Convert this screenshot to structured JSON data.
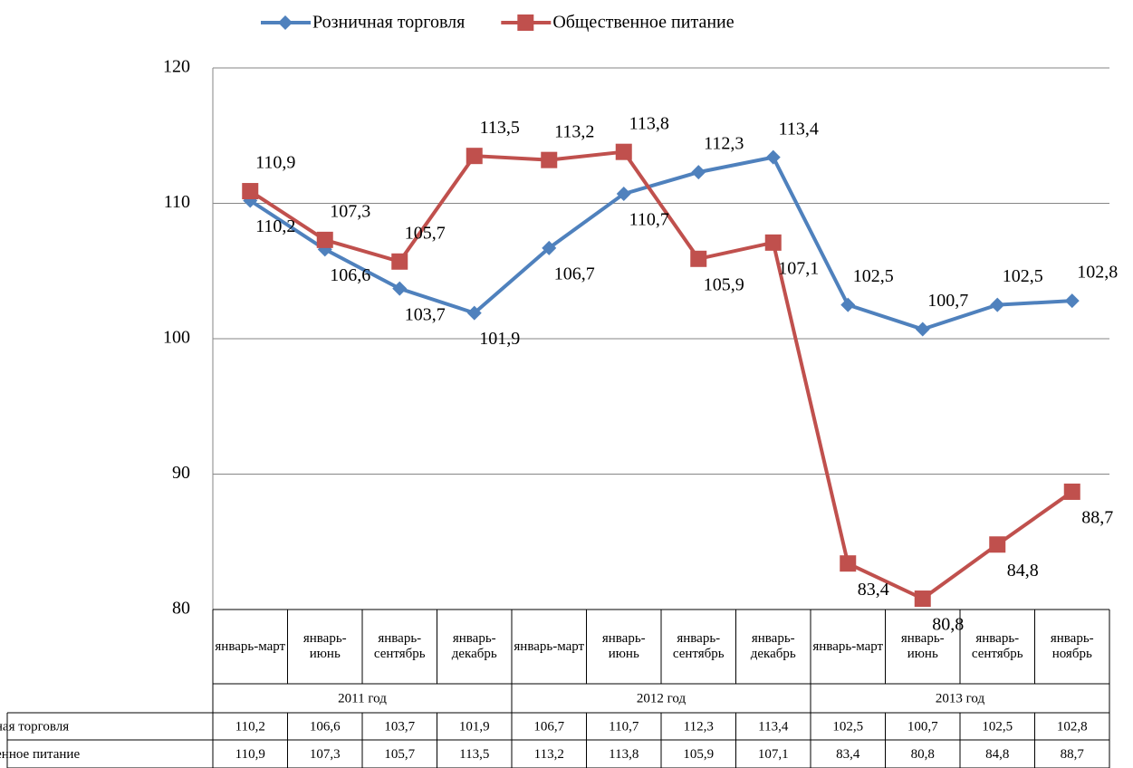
{
  "chart_data": {
    "type": "line",
    "categories": [
      "январь-март",
      "январь-июнь",
      "январь-сентябрь",
      "январь-декабрь",
      "январь-март",
      "январь-июнь",
      "январь-сентябрь",
      "январь-декабрь",
      "январь-март",
      "январь-июнь",
      "январь-сентябрь",
      "январь-ноябрь"
    ],
    "groups": [
      "2011 год",
      "2012 год",
      "2013 год"
    ],
    "series": [
      {
        "name": "Розничная торговля",
        "color": "#4f81bd",
        "marker": "diamond",
        "values": [
          110.2,
          106.6,
          103.7,
          101.9,
          106.7,
          110.7,
          112.3,
          113.4,
          102.5,
          100.7,
          102.5,
          102.8
        ],
        "value_labels": [
          "110,2",
          "106,6",
          "103,7",
          "101,9",
          "106,7",
          "110,7",
          "112,3",
          "113,4",
          "102,5",
          "100,7",
          "102,5",
          "102,8"
        ]
      },
      {
        "name": "Общественное питание",
        "color": "#c0504d",
        "marker": "square",
        "values": [
          110.9,
          107.3,
          105.7,
          113.5,
          113.2,
          113.8,
          105.9,
          107.1,
          83.4,
          80.8,
          84.8,
          88.7
        ],
        "value_labels": [
          "110,9",
          "107,3",
          "105,7",
          "113,5",
          "113,2",
          "113,8",
          "105,9",
          "107,1",
          "83,4",
          "80,8",
          "84,8",
          "88,7"
        ]
      }
    ],
    "ylim": [
      80,
      120
    ],
    "yticks": [
      80,
      90,
      100,
      110,
      120
    ],
    "grid": true,
    "legend": "top"
  }
}
